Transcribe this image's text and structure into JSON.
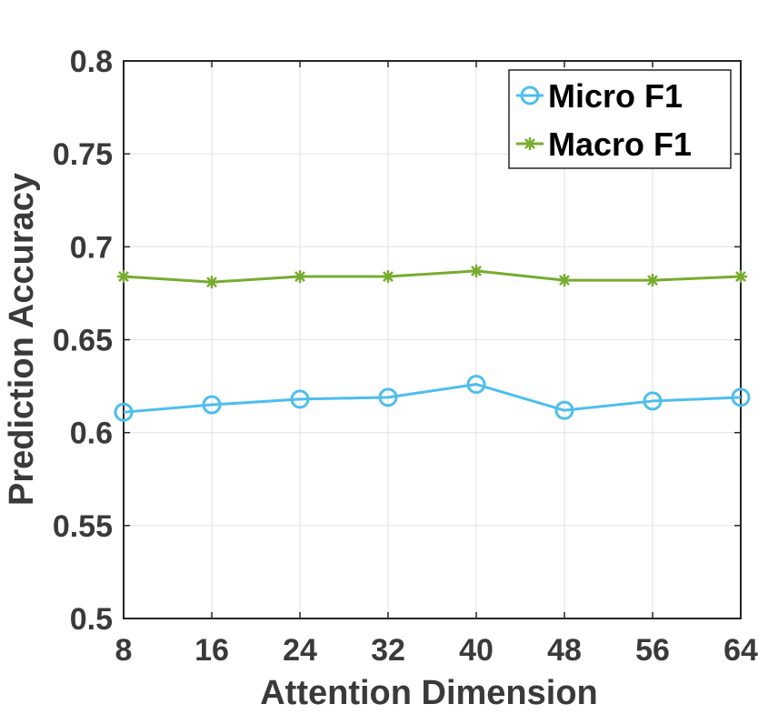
{
  "chart_data": {
    "type": "line",
    "xlabel": "Attention Dimension",
    "ylabel": "Prediction Accuracy",
    "x": [
      8,
      16,
      24,
      32,
      40,
      48,
      56,
      64
    ],
    "xlim": [
      8,
      64
    ],
    "ylim": [
      0.5,
      0.8
    ],
    "x_ticks": [
      "8",
      "16",
      "24",
      "32",
      "40",
      "48",
      "56",
      "64"
    ],
    "y_ticks": [
      "0.5",
      "0.55",
      "0.6",
      "0.65",
      "0.7",
      "0.75",
      "0.8"
    ],
    "y_tick_values": [
      0.5,
      0.55,
      0.6,
      0.65,
      0.7,
      0.75,
      0.8
    ],
    "grid": true,
    "legend_position": "top-right",
    "series": [
      {
        "name": "Micro F1",
        "marker": "circle",
        "color": "#4DBEEE",
        "values": [
          0.611,
          0.615,
          0.618,
          0.619,
          0.626,
          0.612,
          0.617,
          0.619
        ]
      },
      {
        "name": "Macro F1",
        "marker": "asterisk",
        "color": "#77AC30",
        "values": [
          0.684,
          0.681,
          0.684,
          0.684,
          0.687,
          0.682,
          0.682,
          0.684
        ]
      }
    ]
  }
}
